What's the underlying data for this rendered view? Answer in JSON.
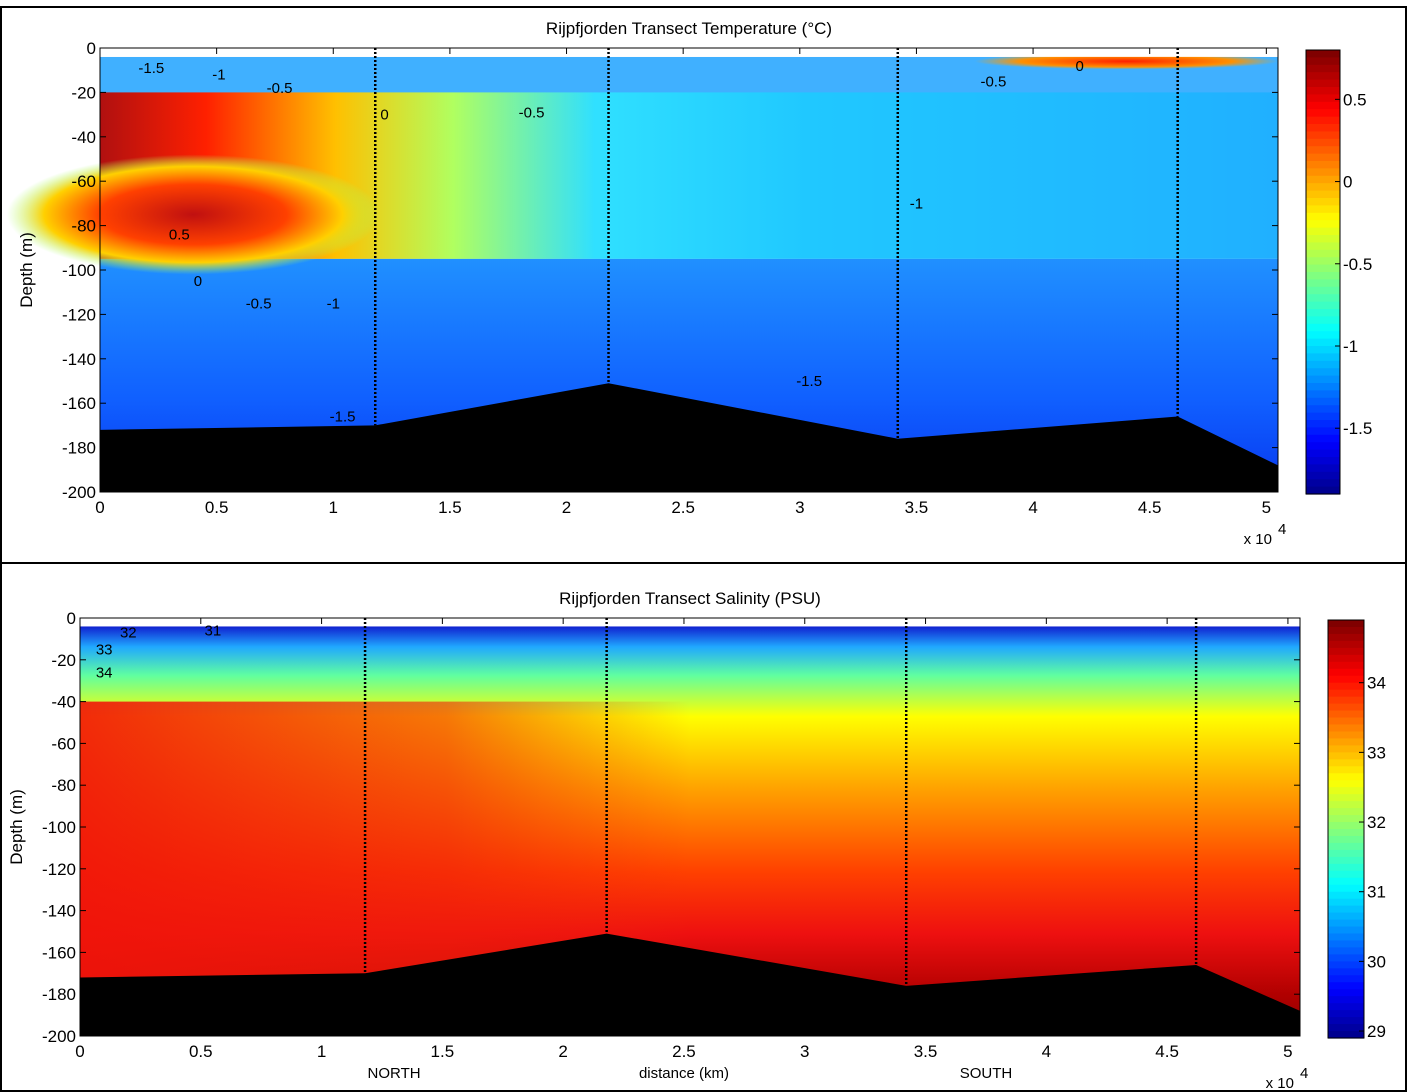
{
  "chart_data": [
    {
      "type": "heatmap",
      "title": "Rijpfjorden Transect Temperature (°C)",
      "ylabel": "Depth (m)",
      "xlabel": "",
      "x_multiplier": "x 10",
      "x_multiplier_exp": "4",
      "xlim": [
        0,
        50500
      ],
      "ylim": [
        -200,
        0
      ],
      "x_ticks": [
        {
          "v": 0,
          "label": "0"
        },
        {
          "v": 5000,
          "label": "0.5"
        },
        {
          "v": 10000,
          "label": "1"
        },
        {
          "v": 15000,
          "label": "1.5"
        },
        {
          "v": 20000,
          "label": "2"
        },
        {
          "v": 25000,
          "label": "2.5"
        },
        {
          "v": 30000,
          "label": "3"
        },
        {
          "v": 35000,
          "label": "3.5"
        },
        {
          "v": 40000,
          "label": "4"
        },
        {
          "v": 45000,
          "label": "4.5"
        },
        {
          "v": 50000,
          "label": "5"
        }
      ],
      "y_ticks": [
        {
          "v": 0,
          "label": "0"
        },
        {
          "v": -20,
          "label": "-20"
        },
        {
          "v": -40,
          "label": "-40"
        },
        {
          "v": -60,
          "label": "-60"
        },
        {
          "v": -80,
          "label": "-80"
        },
        {
          "v": -100,
          "label": "-100"
        },
        {
          "v": -120,
          "label": "-120"
        },
        {
          "v": -140,
          "label": "-140"
        },
        {
          "v": -160,
          "label": "-160"
        },
        {
          "v": -180,
          "label": "-180"
        },
        {
          "v": -200,
          "label": "-200"
        }
      ],
      "colorbar": {
        "range": [
          -1.9,
          0.8
        ],
        "ticks": [
          {
            "v": 0.5,
            "label": "0.5"
          },
          {
            "v": 0,
            "label": "0"
          },
          {
            "v": -0.5,
            "label": "-0.5"
          },
          {
            "v": -1,
            "label": "-1"
          },
          {
            "v": -1.5,
            "label": "-1.5"
          }
        ]
      },
      "stations_x": [
        11800,
        21800,
        34200,
        46200
      ],
      "bathymetry": [
        [
          0,
          -172
        ],
        [
          11800,
          -170
        ],
        [
          21800,
          -151
        ],
        [
          34200,
          -176
        ],
        [
          46200,
          -166
        ],
        [
          50500,
          -188
        ]
      ],
      "contour_labels": [
        {
          "x": 2200,
          "y": -9,
          "label": "-1.5"
        },
        {
          "x": 5100,
          "y": -12,
          "label": "-1"
        },
        {
          "x": 7700,
          "y": -18,
          "label": "-0.5"
        },
        {
          "x": 12200,
          "y": -30,
          "label": "0"
        },
        {
          "x": 18500,
          "y": -29,
          "label": "-0.5"
        },
        {
          "x": 42000,
          "y": -8,
          "label": "0"
        },
        {
          "x": 38300,
          "y": -15,
          "label": "-0.5"
        },
        {
          "x": 35000,
          "y": -70,
          "label": "-1"
        },
        {
          "x": 3400,
          "y": -84,
          "label": "0.5"
        },
        {
          "x": 4200,
          "y": -105,
          "label": "0"
        },
        {
          "x": 6800,
          "y": -115,
          "label": "-0.5"
        },
        {
          "x": 10000,
          "y": -115,
          "label": "-1"
        },
        {
          "x": 10400,
          "y": -166,
          "label": "-1.5"
        },
        {
          "x": 30400,
          "y": -150,
          "label": "-1.5"
        }
      ]
    },
    {
      "type": "heatmap",
      "title": "Rijpfjorden Transect Salinity (PSU)",
      "ylabel": "Depth (m)",
      "xlabel": "distance (km)",
      "x_multiplier": "x 10",
      "x_multiplier_exp": "4",
      "region_labels": [
        {
          "x": 13000,
          "label": "NORTH"
        },
        {
          "x": 25000,
          "label": "distance (km)"
        },
        {
          "x": 37500,
          "label": "SOUTH"
        }
      ],
      "xlim": [
        0,
        50500
      ],
      "ylim": [
        -200,
        0
      ],
      "x_ticks": [
        {
          "v": 0,
          "label": "0"
        },
        {
          "v": 5000,
          "label": "0.5"
        },
        {
          "v": 10000,
          "label": "1"
        },
        {
          "v": 15000,
          "label": "1.5"
        },
        {
          "v": 20000,
          "label": "2"
        },
        {
          "v": 25000,
          "label": "2.5"
        },
        {
          "v": 30000,
          "label": "3"
        },
        {
          "v": 35000,
          "label": "3.5"
        },
        {
          "v": 40000,
          "label": "4"
        },
        {
          "v": 45000,
          "label": "4.5"
        },
        {
          "v": 50000,
          "label": "5"
        }
      ],
      "y_ticks": [
        {
          "v": 0,
          "label": "0"
        },
        {
          "v": -20,
          "label": "-20"
        },
        {
          "v": -40,
          "label": "-40"
        },
        {
          "v": -60,
          "label": "-60"
        },
        {
          "v": -80,
          "label": "-80"
        },
        {
          "v": -100,
          "label": "-100"
        },
        {
          "v": -120,
          "label": "-120"
        },
        {
          "v": -140,
          "label": "-140"
        },
        {
          "v": -160,
          "label": "-160"
        },
        {
          "v": -180,
          "label": "-180"
        },
        {
          "v": -200,
          "label": "-200"
        }
      ],
      "colorbar": {
        "range": [
          28.9,
          34.9
        ],
        "ticks": [
          {
            "v": 34,
            "label": "34"
          },
          {
            "v": 33,
            "label": "33"
          },
          {
            "v": 32,
            "label": "32"
          },
          {
            "v": 31,
            "label": "31"
          },
          {
            "v": 30,
            "label": "30"
          },
          {
            "v": 29,
            "label": "29"
          }
        ]
      },
      "stations_x": [
        11800,
        21800,
        34200,
        46200
      ],
      "bathymetry": [
        [
          0,
          -172
        ],
        [
          11800,
          -170
        ],
        [
          21800,
          -151
        ],
        [
          34200,
          -176
        ],
        [
          46200,
          -166
        ],
        [
          50500,
          -188
        ]
      ],
      "contour_labels": [
        {
          "x": 2000,
          "y": -7,
          "label": "32"
        },
        {
          "x": 5500,
          "y": -6,
          "label": "31"
        },
        {
          "x": 1000,
          "y": -15,
          "label": "33"
        },
        {
          "x": 1000,
          "y": -26,
          "label": "34"
        }
      ]
    }
  ]
}
